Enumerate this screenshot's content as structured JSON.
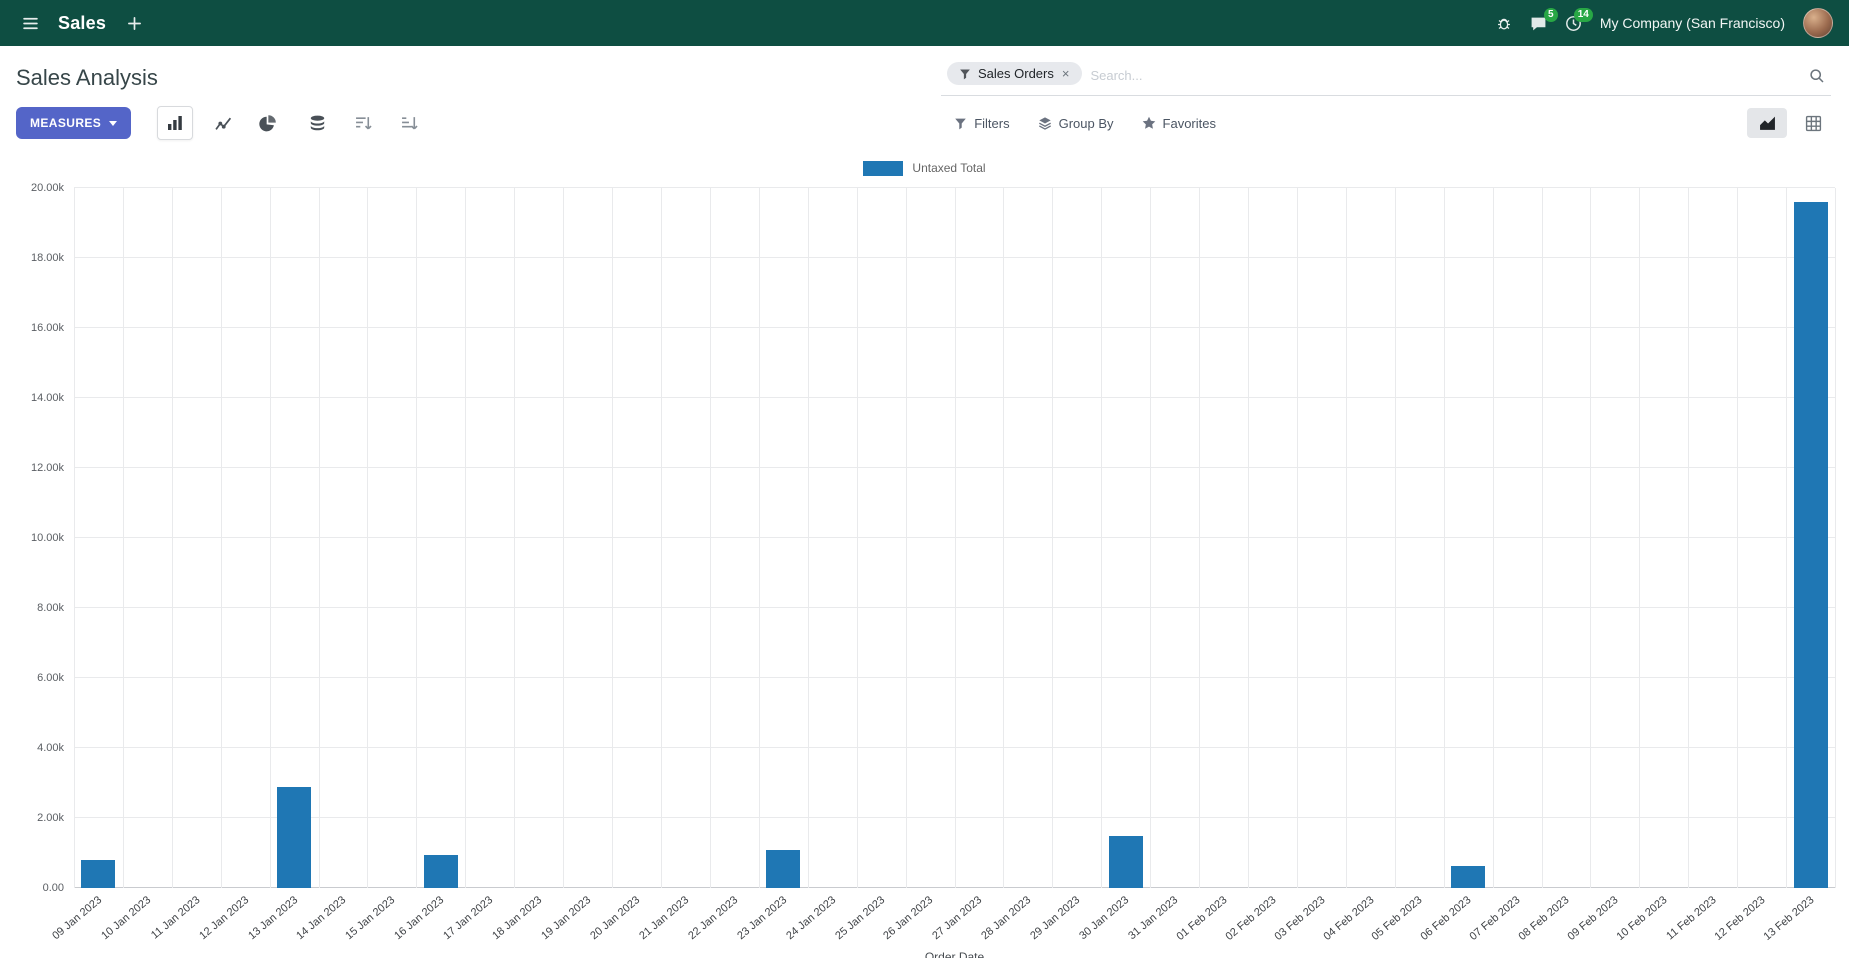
{
  "colors": {
    "navbar_bg": "#0e4e42",
    "primary_button": "#5465c8",
    "badge_green": "#28a745",
    "bar_color": "#1f77b4"
  },
  "navbar": {
    "app_name": "Sales",
    "messages_badge": "5",
    "activities_badge": "14",
    "company": "My Company (San Francisco)"
  },
  "control_panel": {
    "title": "Sales Analysis",
    "search": {
      "facet_label": "Sales Orders",
      "facet_remove": "×",
      "placeholder": "Search..."
    },
    "buttons": {
      "measures": "MEASURES",
      "filters": "Filters",
      "group_by": "Group By",
      "favorites": "Favorites"
    }
  },
  "chart_data": {
    "type": "bar",
    "title": "",
    "xlabel": "Order Date",
    "ylabel": "",
    "ylim": [
      0,
      20000
    ],
    "grid": true,
    "legend_position": "top-center",
    "ytick_labels": [
      "0.00",
      "2.00k",
      "4.00k",
      "6.00k",
      "8.00k",
      "10.00k",
      "12.00k",
      "14.00k",
      "16.00k",
      "18.00k",
      "20.00k"
    ],
    "categories": [
      "09 Jan 2023",
      "10 Jan 2023",
      "11 Jan 2023",
      "12 Jan 2023",
      "13 Jan 2023",
      "14 Jan 2023",
      "15 Jan 2023",
      "16 Jan 2023",
      "17 Jan 2023",
      "18 Jan 2023",
      "19 Jan 2023",
      "20 Jan 2023",
      "21 Jan 2023",
      "22 Jan 2023",
      "23 Jan 2023",
      "24 Jan 2023",
      "25 Jan 2023",
      "26 Jan 2023",
      "27 Jan 2023",
      "28 Jan 2023",
      "29 Jan 2023",
      "30 Jan 2023",
      "31 Jan 2023",
      "01 Feb 2023",
      "02 Feb 2023",
      "03 Feb 2023",
      "04 Feb 2023",
      "05 Feb 2023",
      "06 Feb 2023",
      "07 Feb 2023",
      "08 Feb 2023",
      "09 Feb 2023",
      "10 Feb 2023",
      "11 Feb 2023",
      "12 Feb 2023",
      "13 Feb 2023"
    ],
    "series": [
      {
        "name": "Untaxed Total",
        "color": "#1f77b4",
        "values": [
          800,
          0,
          0,
          0,
          2900,
          0,
          0,
          950,
          0,
          0,
          0,
          0,
          0,
          0,
          1080,
          0,
          0,
          0,
          0,
          0,
          0,
          1500,
          0,
          0,
          0,
          0,
          0,
          0,
          620,
          0,
          0,
          0,
          0,
          0,
          0,
          19600
        ]
      }
    ]
  }
}
